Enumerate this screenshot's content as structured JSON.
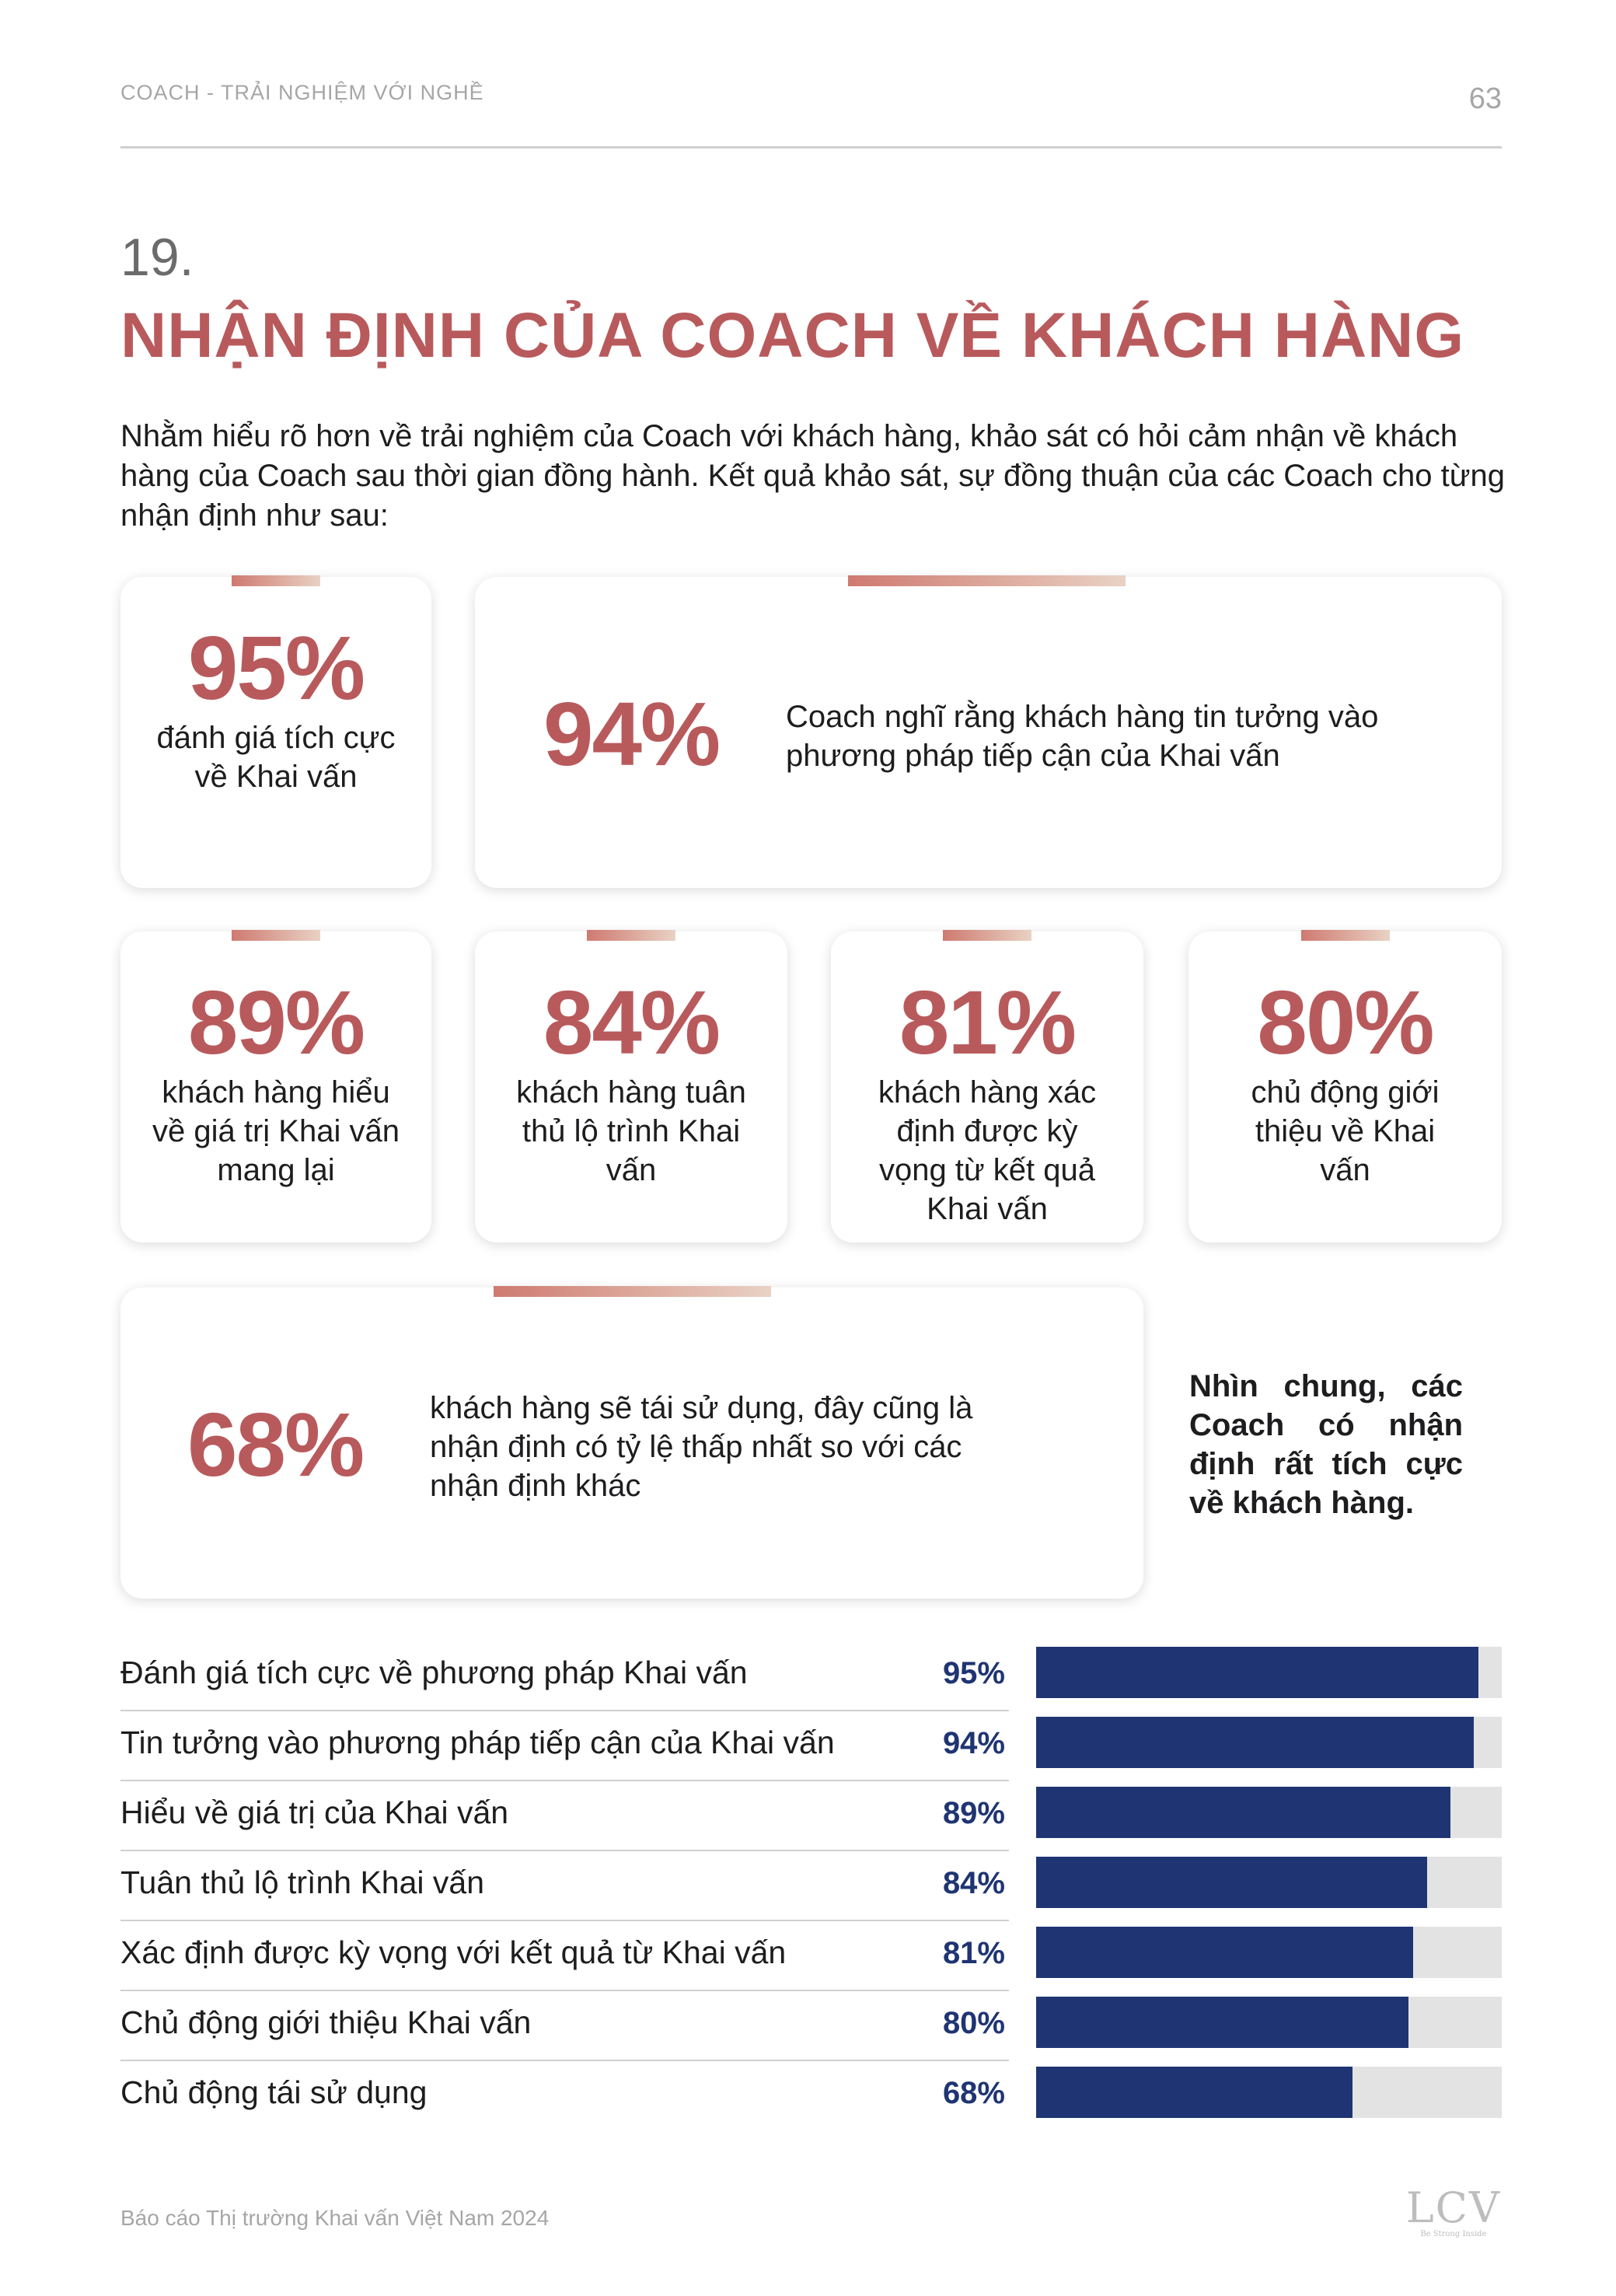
{
  "header": {
    "left": "COACH - TRẢI NGHIỆM VỚI NGHỀ",
    "page_number": "63"
  },
  "section": {
    "number": "19.",
    "title": "NHẬN ĐỊNH CỦA COACH VỀ KHÁCH HÀNG",
    "intro": "Nhằm hiểu rõ hơn về trải nghiệm của Coach với khách hàng, khảo sát có hỏi cảm nhận về khách hàng của Coach sau thời gian đồng hành. Kết quả khảo sát, sự đồng thuận của các Coach cho từng nhận định như sau:"
  },
  "cards": {
    "c95": {
      "value": "95%",
      "label": "đánh giá tích cực về Khai vấn"
    },
    "c94": {
      "value": "94%",
      "label": "Coach nghĩ rằng khách hàng tin tưởng vào phương pháp tiếp cận của Khai vấn"
    },
    "c89": {
      "value": "89%",
      "label": "khách hàng hiểu về giá trị Khai vấn mang lại"
    },
    "c84": {
      "value": "84%",
      "label": "khách hàng tuân thủ lộ trình Khai vấn"
    },
    "c81": {
      "value": "81%",
      "label": "khách hàng xác định được kỳ vọng từ kết quả Khai vấn"
    },
    "c80": {
      "value": "80%",
      "label": "chủ động giới thiệu về Khai vấn"
    },
    "c68": {
      "value": "68%",
      "label": "khách hàng sẽ tái sử dụng, đây cũng là nhận định có tỷ lệ thấp nhất so với các nhận định khác"
    }
  },
  "summary": "Nhìn chung, các Coach có nhận định rất tích cực về khách hàng.",
  "chart_data": {
    "type": "bar",
    "orientation": "horizontal",
    "categories": [
      "Đánh giá tích cực về phương pháp Khai vấn",
      "Tin tưởng vào phương pháp tiếp cận của Khai vấn",
      "Hiểu về giá trị của Khai vấn",
      "Tuân thủ lộ trình Khai vấn",
      "Xác định được kỳ vọng với kết quả từ Khai vấn",
      "Chủ động giới thiệu Khai vấn",
      "Chủ động tái sử dụng"
    ],
    "values": [
      95,
      94,
      89,
      84,
      81,
      80,
      68
    ],
    "value_labels": [
      "95%",
      "94%",
      "89%",
      "84%",
      "81%",
      "80%",
      "68%"
    ],
    "xlim": [
      0,
      100
    ],
    "colors": {
      "bar": "#1f3472",
      "track": "#e3e3e3"
    }
  },
  "footer": {
    "text": "Báo cáo Thị trường Khai vấn Việt Nam 2024",
    "logo_main": "LCV",
    "logo_sub": "Be Strong Inside"
  },
  "colors": {
    "accent": "#b85a5c",
    "navy": "#1f3472"
  }
}
